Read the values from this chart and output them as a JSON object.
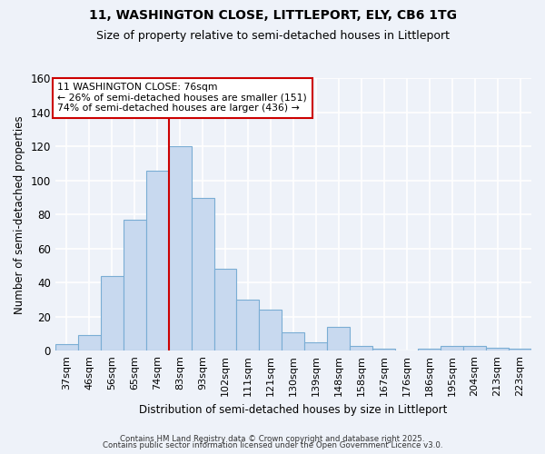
{
  "title_line1": "11, WASHINGTON CLOSE, LITTLEPORT, ELY, CB6 1TG",
  "title_line2": "Size of property relative to semi-detached houses in Littleport",
  "categories": [
    "37sqm",
    "46sqm",
    "56sqm",
    "65sqm",
    "74sqm",
    "83sqm",
    "93sqm",
    "102sqm",
    "111sqm",
    "121sqm",
    "130sqm",
    "139sqm",
    "148sqm",
    "158sqm",
    "167sqm",
    "176sqm",
    "186sqm",
    "195sqm",
    "204sqm",
    "213sqm",
    "223sqm"
  ],
  "values": [
    4,
    9,
    44,
    77,
    106,
    120,
    90,
    48,
    30,
    24,
    11,
    5,
    14,
    3,
    1,
    0,
    1,
    3,
    3,
    2,
    1
  ],
  "bar_color": "#c8d9ef",
  "bar_edge_color": "#7aadd4",
  "property_label": "11 WASHINGTON CLOSE: 76sqm",
  "pct_smaller": 26,
  "pct_larger": 74,
  "count_smaller": 151,
  "count_larger": 436,
  "redline_x": 4.5,
  "xlabel": "Distribution of semi-detached houses by size in Littleport",
  "ylabel": "Number of semi-detached properties",
  "ylim": [
    0,
    160
  ],
  "yticks": [
    0,
    20,
    40,
    60,
    80,
    100,
    120,
    140,
    160
  ],
  "footer_line1": "Contains HM Land Registry data © Crown copyright and database right 2025.",
  "footer_line2": "Contains public sector information licensed under the Open Government Licence v3.0.",
  "bg_color": "#eef2f9",
  "grid_color": "#ffffff",
  "annotation_box_color": "#cc0000",
  "title_fontsize": 10,
  "subtitle_fontsize": 9
}
